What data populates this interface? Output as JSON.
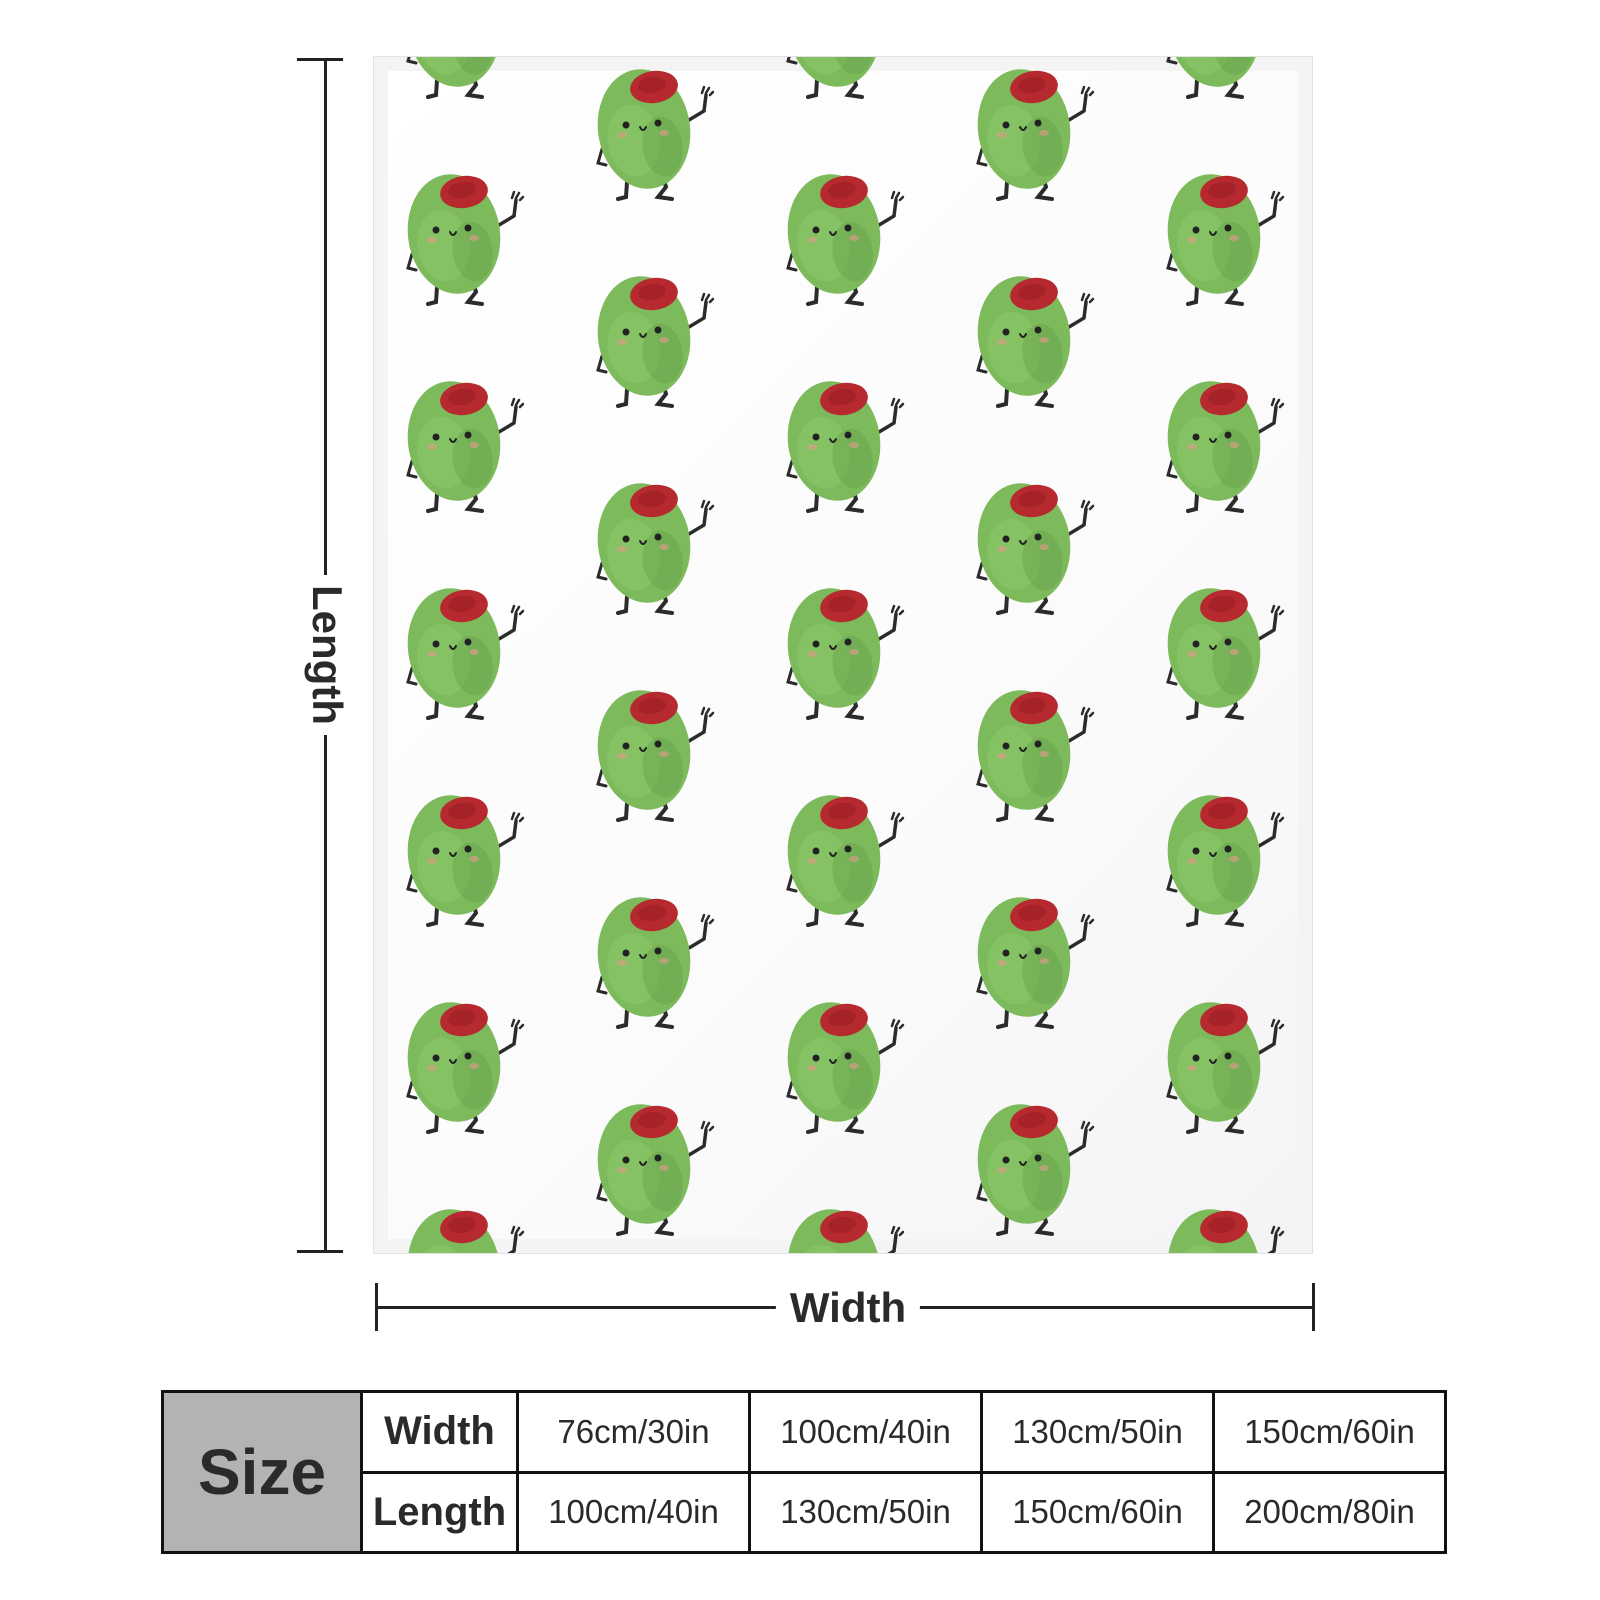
{
  "product": {
    "pattern_icon": "olive-character-icon",
    "colors": {
      "olive": "#7dba5c",
      "olive_dark": "#5e9c45",
      "pimento": "#b62a2f",
      "legs": "#2b2b2b"
    }
  },
  "dimensions": {
    "length_label": "Length",
    "width_label": "Width"
  },
  "size_table": {
    "title": "Size",
    "rows": [
      {
        "label": "Width",
        "values": [
          "76cm/30in",
          "100cm/40in",
          "130cm/50in",
          "150cm/60in"
        ]
      },
      {
        "label": "Length",
        "values": [
          "100cm/40in",
          "130cm/50in",
          "150cm/60in",
          "200cm/80in"
        ]
      }
    ]
  }
}
